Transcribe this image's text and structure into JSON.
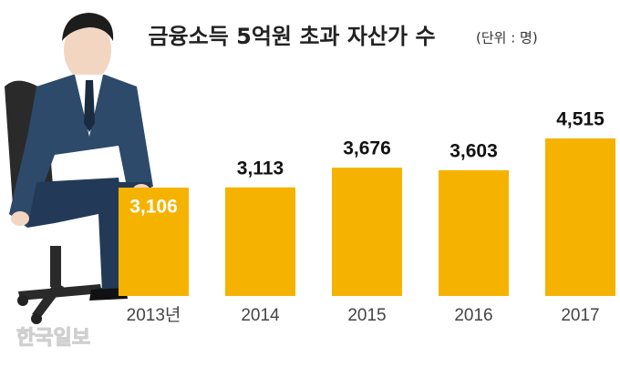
{
  "chart_data": {
    "type": "bar",
    "title": "금융소득 5억원 초과 자산가 수",
    "subtitle": "(단위 : 명)",
    "categories": [
      "2013년",
      "2014",
      "2015",
      "2016",
      "2017"
    ],
    "values": [
      3106,
      3113,
      3676,
      3603,
      4515
    ],
    "value_labels": [
      "3,106",
      "3,113",
      "3,676",
      "3,603",
      "4,515"
    ],
    "color": "#f5b300",
    "source": "한국일보"
  }
}
